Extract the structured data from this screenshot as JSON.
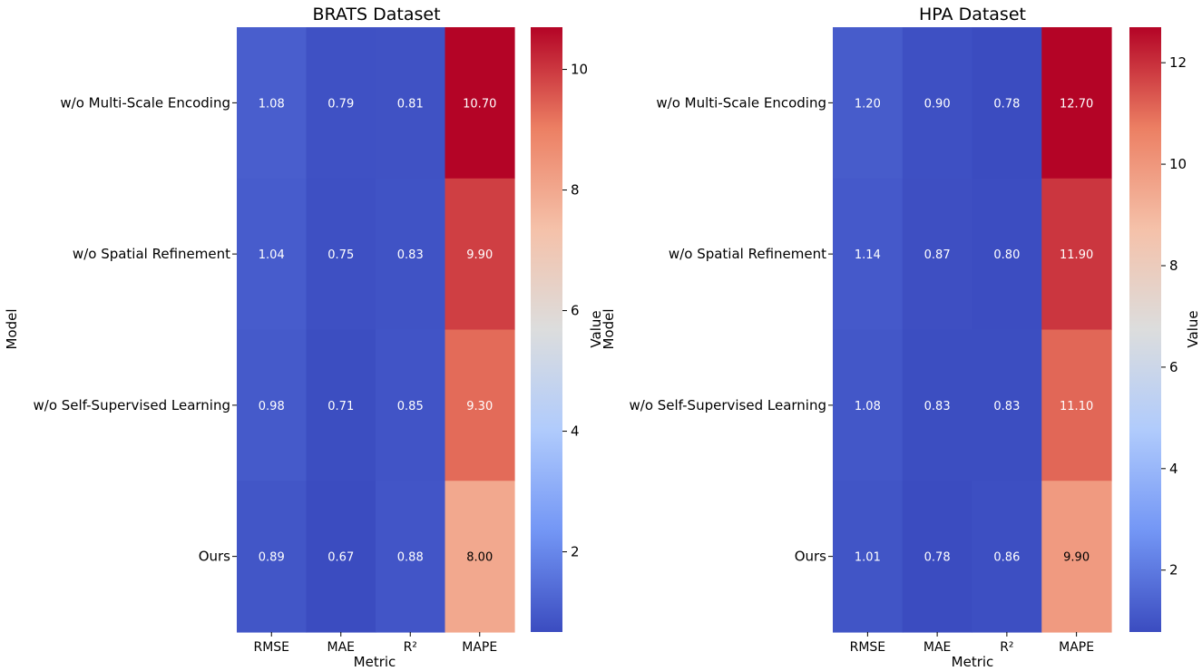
{
  "colors": {
    "cmap": [
      "#3b4cc0",
      "#7396f5",
      "#b0cbfc",
      "#dcdddd",
      "#f5c1a9",
      "#ec7f63",
      "#b40426"
    ],
    "text_light": "#ffffff",
    "text_dark": "#000000"
  },
  "chart_data": [
    {
      "type": "heatmap",
      "title": "BRATS Dataset",
      "xlabel": "Metric",
      "ylabel": "Model",
      "colorbar_label": "Value",
      "columns": [
        "RMSE",
        "MAE",
        "R²",
        "MAPE"
      ],
      "rows": [
        "w/o Multi-Scale Encoding",
        "w/o Spatial Refinement",
        "w/o Self-Supervised Learning",
        "Ours"
      ],
      "values": [
        [
          1.08,
          0.79,
          0.81,
          10.7
        ],
        [
          1.04,
          0.75,
          0.83,
          9.9
        ],
        [
          0.98,
          0.71,
          0.85,
          9.3
        ],
        [
          0.89,
          0.67,
          0.88,
          8.0
        ]
      ],
      "value_labels": [
        [
          "1.08",
          "0.79",
          "0.81",
          "10.70"
        ],
        [
          "1.04",
          "0.75",
          "0.83",
          "9.90"
        ],
        [
          "0.98",
          "0.71",
          "0.85",
          "9.30"
        ],
        [
          "0.89",
          "0.67",
          "0.88",
          "8.00"
        ]
      ],
      "vmin": 0.67,
      "vmax": 10.7,
      "colorbar_ticks": [
        2,
        4,
        6,
        8,
        10
      ]
    },
    {
      "type": "heatmap",
      "title": "HPA Dataset",
      "xlabel": "Metric",
      "ylabel": "Model",
      "colorbar_label": "Value",
      "columns": [
        "RMSE",
        "MAE",
        "R²",
        "MAPE"
      ],
      "rows": [
        "w/o Multi-Scale Encoding",
        "w/o Spatial Refinement",
        "w/o Self-Supervised Learning",
        "Ours"
      ],
      "values": [
        [
          1.2,
          0.9,
          0.78,
          12.7
        ],
        [
          1.14,
          0.87,
          0.8,
          11.9
        ],
        [
          1.08,
          0.83,
          0.83,
          11.1
        ],
        [
          1.01,
          0.78,
          0.86,
          9.9
        ]
      ],
      "value_labels": [
        [
          "1.20",
          "0.90",
          "0.78",
          "12.70"
        ],
        [
          "1.14",
          "0.87",
          "0.80",
          "11.90"
        ],
        [
          "1.08",
          "0.83",
          "0.83",
          "11.10"
        ],
        [
          "1.01",
          "0.78",
          "0.86",
          "9.90"
        ]
      ],
      "vmin": 0.78,
      "vmax": 12.7,
      "colorbar_ticks": [
        2,
        4,
        6,
        8,
        10,
        12
      ]
    }
  ]
}
